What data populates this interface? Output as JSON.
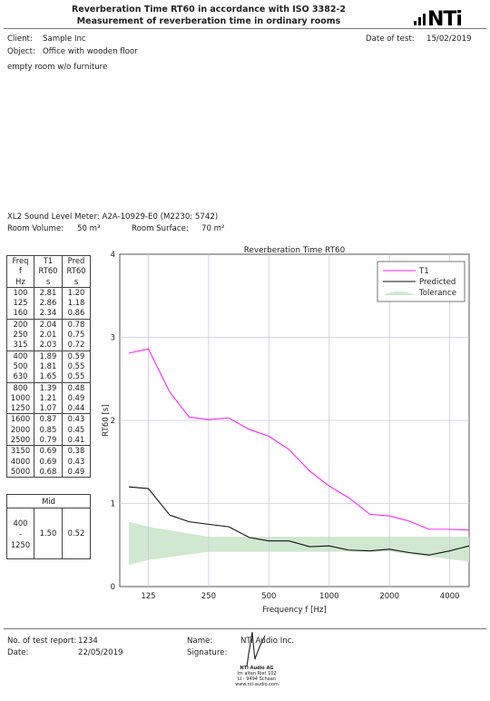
{
  "header": {
    "title": "Reverberation Time RT60 in accordance with ISO 3382-2",
    "subtitle": "Measurement of reverberation time in ordinary rooms",
    "logo": "NTi"
  },
  "info": {
    "client_label": "Client:",
    "client_value": "Sample Inc",
    "object_label": "Object:",
    "object_value": "Office with wooden floor",
    "date_label": "Date of test:",
    "date_value": "15/02/2019",
    "note": "empty room w/o furniture",
    "meter": "XL2 Sound Level Meter: A2A-10929-E0 (M2230: 5742)",
    "volume_label": "Room Volume:",
    "volume_value": "50 m³",
    "surface_label": "Room Surface:",
    "surface_value": "70 m²"
  },
  "table": {
    "head": [
      [
        "Freq",
        "f",
        "Hz"
      ],
      [
        "T1",
        "RT60",
        "s"
      ],
      [
        "Pred",
        "RT60",
        "s"
      ]
    ],
    "groups": [
      [
        [
          "100",
          "2.81",
          "1.20"
        ],
        [
          "125",
          "2.86",
          "1.18"
        ],
        [
          "160",
          "2.34",
          "0.86"
        ]
      ],
      [
        [
          "200",
          "2.04",
          "0.78"
        ],
        [
          "250",
          "2.01",
          "0.75"
        ],
        [
          "315",
          "2.03",
          "0.72"
        ]
      ],
      [
        [
          "400",
          "1.89",
          "0.59"
        ],
        [
          "500",
          "1.81",
          "0.55"
        ],
        [
          "630",
          "1.65",
          "0.55"
        ]
      ],
      [
        [
          "800",
          "1.39",
          "0.48"
        ],
        [
          "1000",
          "1.21",
          "0.49"
        ],
        [
          "1250",
          "1.07",
          "0.44"
        ]
      ],
      [
        [
          "1600",
          "0.87",
          "0.43"
        ],
        [
          "2000",
          "0.85",
          "0.45"
        ],
        [
          "2500",
          "0.79",
          "0.41"
        ]
      ],
      [
        [
          "3150",
          "0.69",
          "0.38"
        ],
        [
          "4000",
          "0.69",
          "0.43"
        ],
        [
          "5000",
          "0.68",
          "0.49"
        ]
      ]
    ],
    "mid_label": "Mid",
    "mid_range": [
      "400",
      "-",
      "1250"
    ],
    "mid_t1": "1.50",
    "mid_pred": "0.52"
  },
  "chart_data": {
    "type": "line",
    "title": "Reverberation Time RT60",
    "xlabel": "Frequency f [Hz]",
    "ylabel": "RT60 [s]",
    "x_scale": "log",
    "xlim": [
      90,
      5000
    ],
    "ylim": [
      0,
      4
    ],
    "x_ticks": [
      125,
      250,
      500,
      1000,
      2000,
      4000
    ],
    "y_ticks": [
      0,
      1,
      2,
      3,
      4
    ],
    "grid": true,
    "legend_position": "top-right",
    "x": [
      100,
      125,
      160,
      200,
      250,
      315,
      400,
      500,
      630,
      800,
      1000,
      1250,
      1600,
      2000,
      2500,
      3150,
      4000,
      5000
    ],
    "series": [
      {
        "name": "T1",
        "color": "#ff22ff",
        "values": [
          2.81,
          2.86,
          2.34,
          2.04,
          2.01,
          2.03,
          1.89,
          1.81,
          1.65,
          1.39,
          1.21,
          1.07,
          0.87,
          0.85,
          0.79,
          0.69,
          0.69,
          0.68
        ]
      },
      {
        "name": "Predicted",
        "color": "#111111",
        "values": [
          1.2,
          1.18,
          0.86,
          0.78,
          0.75,
          0.72,
          0.59,
          0.55,
          0.55,
          0.48,
          0.49,
          0.44,
          0.43,
          0.45,
          0.41,
          0.38,
          0.43,
          0.49
        ]
      }
    ],
    "tolerance": {
      "name": "Tolerance",
      "color": "#cfe8cf",
      "x": [
        100,
        125,
        250,
        500,
        2000,
        5000
      ],
      "upper": [
        0.78,
        0.72,
        0.6,
        0.6,
        0.6,
        0.6
      ],
      "lower": [
        0.26,
        0.32,
        0.42,
        0.42,
        0.42,
        0.3
      ]
    }
  },
  "footer": {
    "report_label": "No. of test report:",
    "report_value": "1234",
    "date_label": "Date:",
    "date_value": "22/05/2019",
    "name_label": "Name:",
    "name_value": "NTi Audio Inc.",
    "signature_label": "Signature:",
    "stamp": [
      "NTi Audio AG",
      "Im alten Riet 102",
      "LI - 9494 Schaan",
      "www.nti-audio.com"
    ]
  }
}
